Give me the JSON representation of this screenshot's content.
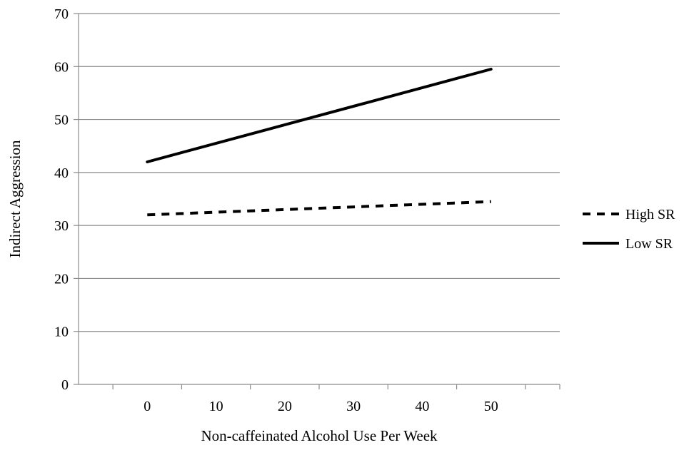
{
  "chart_data": {
    "type": "line",
    "title": "",
    "xlabel": "Non-caffeinated Alcohol Use Per Week",
    "ylabel": "Indirect Aggression",
    "x": [
      0,
      50
    ],
    "x_ticks": [
      "0",
      "10",
      "20",
      "30",
      "40",
      "50"
    ],
    "y_ticks": [
      "0",
      "10",
      "20",
      "30",
      "40",
      "50",
      "60",
      "70"
    ],
    "xlim": [
      -10,
      60
    ],
    "ylim": [
      0,
      70
    ],
    "grid": "horizontal",
    "legend_position": "right",
    "series": [
      {
        "name": "High SR",
        "values": [
          32,
          34.5
        ],
        "style": "dashed",
        "color": "#000000"
      },
      {
        "name": "Low SR",
        "values": [
          42,
          59.5
        ],
        "style": "solid",
        "color": "#000000"
      }
    ]
  }
}
